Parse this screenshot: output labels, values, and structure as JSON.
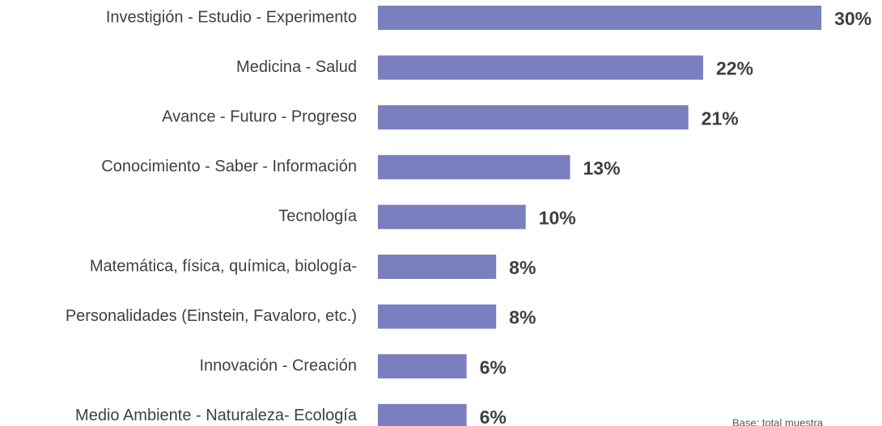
{
  "chart_data": {
    "type": "bar",
    "orientation": "horizontal",
    "categories": [
      "Investigión - Estudio - Experimento",
      "Medicina - Salud",
      "Avance - Futuro - Progreso",
      "Conocimiento - Saber - Información",
      "Tecnología",
      "Matemática, física, química, biología-",
      "Personalidades (Einstein, Favaloro, etc.)",
      "Innovación - Creación",
      "Medio Ambiente - Naturaleza- Ecología"
    ],
    "values": [
      30,
      22,
      21,
      13,
      10,
      8,
      8,
      6,
      6
    ],
    "value_labels": [
      "30%",
      "22%",
      "21%",
      "13%",
      "10%",
      "8%",
      "8%",
      "6%",
      "6%"
    ],
    "color": "#7a7fbf",
    "note": "Base: total muestra"
  }
}
